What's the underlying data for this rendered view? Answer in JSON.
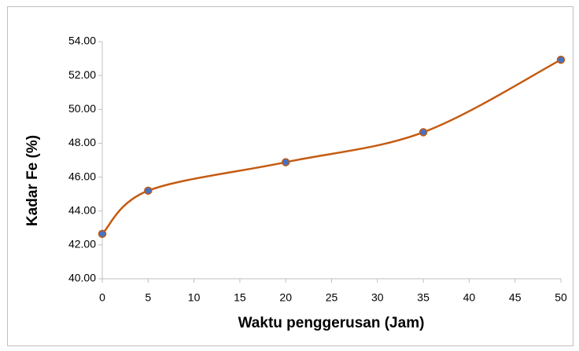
{
  "chart_data": {
    "type": "line",
    "smooth": true,
    "x_label": "Waktu penggerusan (Jam)",
    "y_label": "Kadar Fe (%)",
    "x": [
      0,
      5,
      20,
      35,
      50
    ],
    "series": [
      {
        "name": "Kadar Fe",
        "color": "#c55a11",
        "marker_color": "#4472c4",
        "values": [
          42.65,
          45.2,
          46.88,
          48.65,
          52.93
        ]
      }
    ],
    "xlim": [
      0,
      50
    ],
    "xticks": [
      0,
      5,
      10,
      15,
      20,
      25,
      30,
      35,
      40,
      45,
      50
    ],
    "ylim": [
      40,
      54
    ],
    "yticks": [
      {
        "value": 40,
        "label": "40.00"
      },
      {
        "value": 42,
        "label": "42.00"
      },
      {
        "value": 44,
        "label": "44.00"
      },
      {
        "value": 46,
        "label": "46.00"
      },
      {
        "value": 48,
        "label": "48.00"
      },
      {
        "value": 50,
        "label": "50.00"
      },
      {
        "value": 52,
        "label": "52.00"
      },
      {
        "value": 54,
        "label": "54.00"
      }
    ],
    "grid": false
  }
}
